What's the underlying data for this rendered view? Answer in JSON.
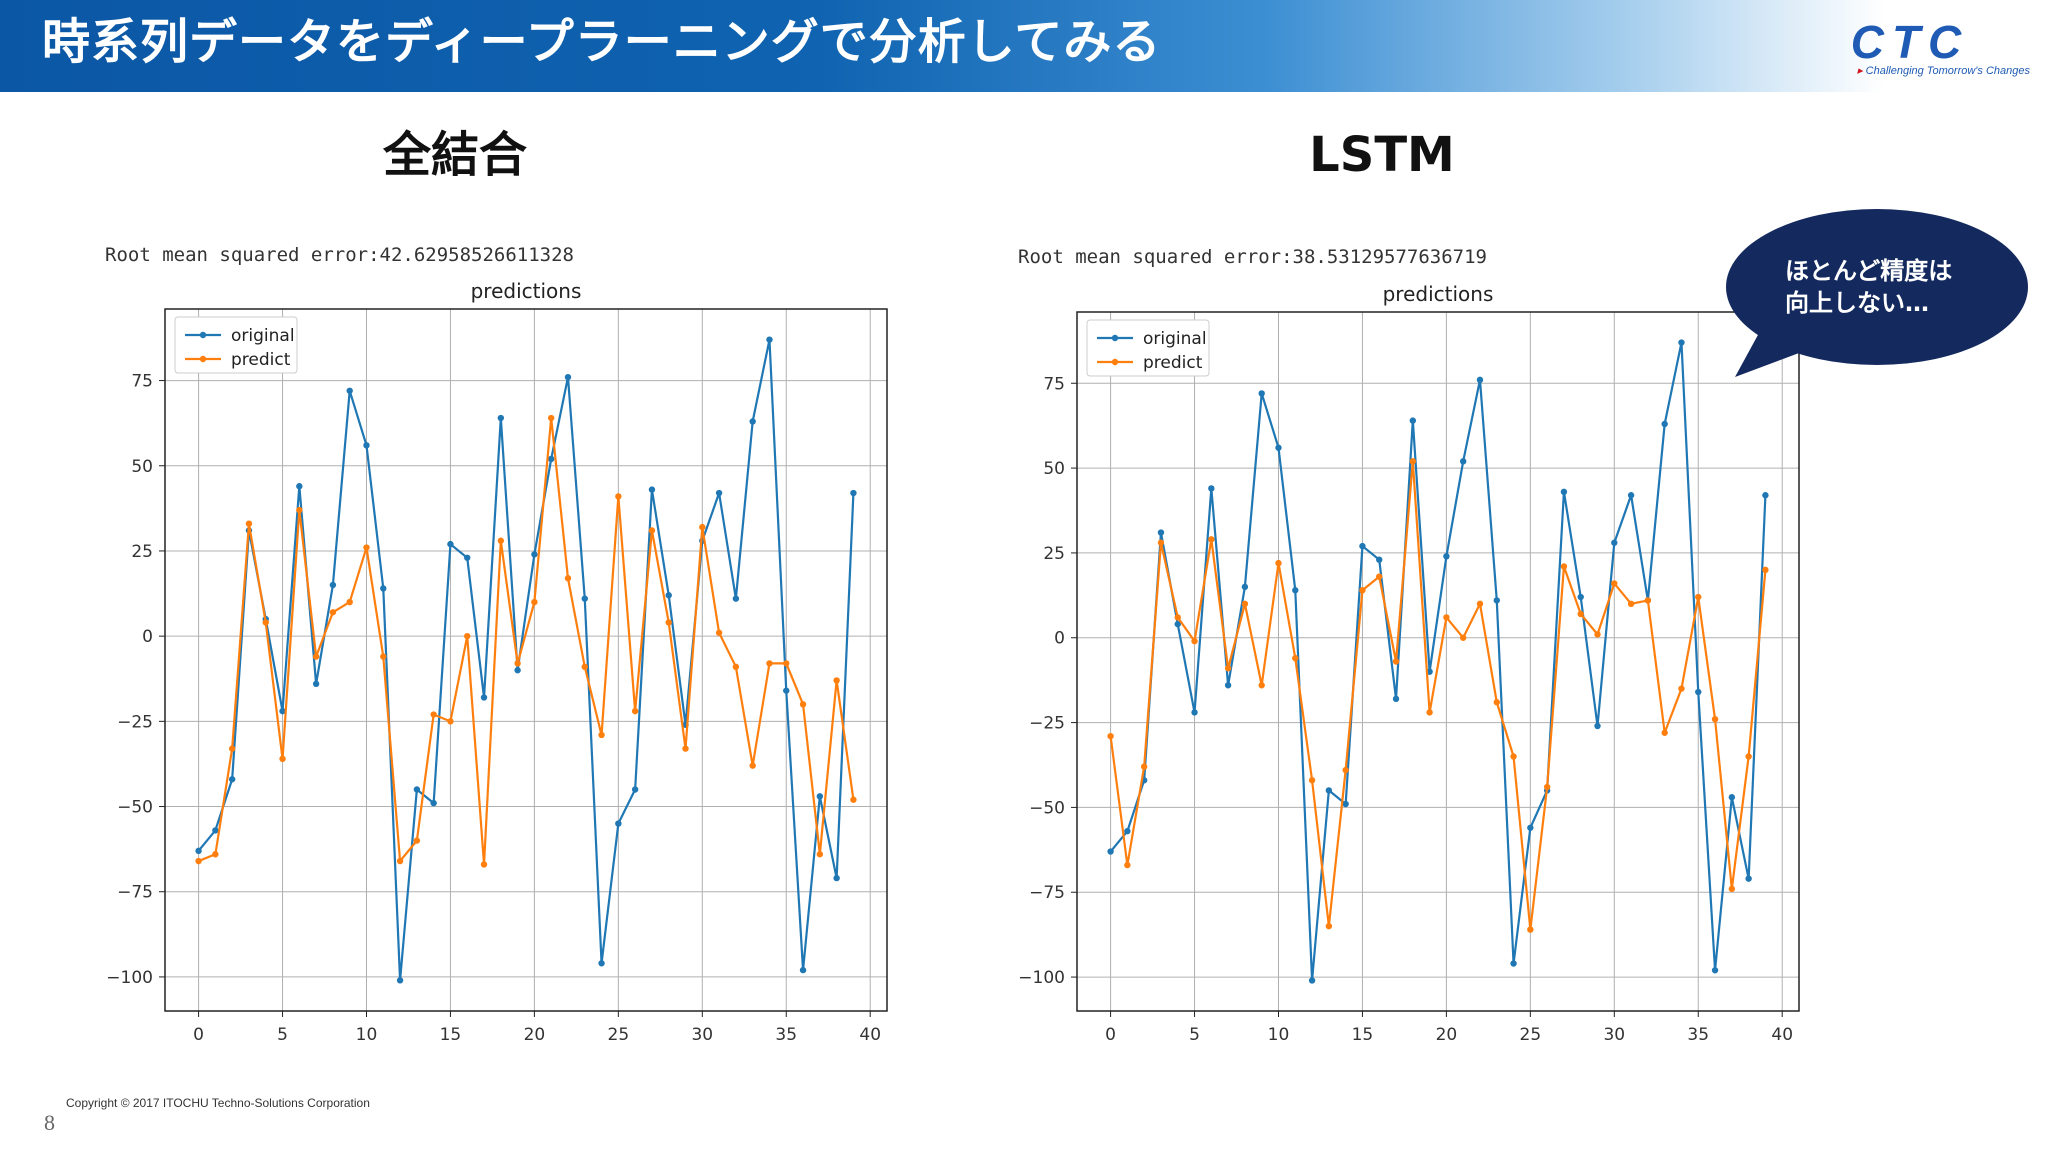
{
  "slide": {
    "title": "時系列データをディープラーニングで分析してみる",
    "logo_text": "CTC",
    "logo_tagline": "Challenging Tomorrow's Changes",
    "left_heading": "全結合",
    "right_heading": "LSTM",
    "callout": "ほとんど精度は\n向上しない…",
    "copyright": "Copyright © 2017  ITOCHU Techno-Solutions Corporation",
    "page_number": "8"
  },
  "colors": {
    "header_start": "#0b57a6",
    "original": "#1f77b4",
    "predict": "#ff7f0e",
    "callout": "#14295e"
  },
  "chart_data": [
    {
      "type": "line",
      "annotation": "Root mean squared error:42.62958526611328",
      "title": "predictions",
      "xlabel": "",
      "ylabel": "",
      "xlim": [
        -2,
        41
      ],
      "ylim": [
        -110,
        96
      ],
      "xticks": [
        0,
        5,
        10,
        15,
        20,
        25,
        30,
        35,
        40
      ],
      "yticks": [
        75,
        50,
        25,
        0,
        -25,
        -50,
        -75,
        -100
      ],
      "grid": true,
      "legend": "top-left",
      "series": [
        {
          "name": "original",
          "values": [
            -63,
            -57,
            -42,
            31,
            5,
            -22,
            44,
            -14,
            15,
            72,
            56,
            14,
            -101,
            -45,
            -49,
            27,
            23,
            -18,
            64,
            -10,
            24,
            52,
            76,
            11,
            -96,
            -55,
            -45,
            43,
            12,
            -26,
            28,
            42,
            11,
            63,
            87,
            -16,
            -98,
            -47,
            -71,
            42
          ]
        },
        {
          "name": "predict",
          "values": [
            -66,
            -64,
            -33,
            33,
            4,
            -36,
            37,
            -6,
            7,
            10,
            26,
            -6,
            -66,
            -60,
            -23,
            -25,
            0,
            -67,
            28,
            -8,
            10,
            64,
            17,
            -9,
            -29,
            41,
            -22,
            31,
            4,
            -33,
            32,
            1,
            -9,
            -38,
            -8,
            -8,
            -20,
            -64,
            -13,
            -48
          ]
        }
      ]
    },
    {
      "type": "line",
      "annotation": "Root mean squared error:38.53129577636719",
      "title": "predictions",
      "xlabel": "",
      "ylabel": "",
      "xlim": [
        -2,
        41
      ],
      "ylim": [
        -110,
        96
      ],
      "xticks": [
        0,
        5,
        10,
        15,
        20,
        25,
        30,
        35,
        40
      ],
      "yticks": [
        75,
        50,
        25,
        0,
        -25,
        -50,
        -75,
        -100
      ],
      "grid": true,
      "legend": "top-left",
      "series": [
        {
          "name": "original",
          "values": [
            -63,
            -57,
            -42,
            31,
            4,
            -22,
            44,
            -14,
            15,
            72,
            56,
            14,
            -101,
            -45,
            -49,
            27,
            23,
            -18,
            64,
            -10,
            24,
            52,
            76,
            11,
            -96,
            -56,
            -45,
            43,
            12,
            -26,
            28,
            42,
            11,
            63,
            87,
            -16,
            -98,
            -47,
            -71,
            42
          ]
        },
        {
          "name": "predict",
          "values": [
            -29,
            -67,
            -38,
            28,
            6,
            -1,
            29,
            -9,
            10,
            -14,
            22,
            -6,
            -42,
            -85,
            -39,
            14,
            18,
            -7,
            52,
            -22,
            6,
            0,
            10,
            -19,
            -35,
            -86,
            -44,
            21,
            7,
            1,
            16,
            10,
            11,
            -28,
            -15,
            12,
            -24,
            -74,
            -35,
            20
          ]
        }
      ]
    }
  ]
}
